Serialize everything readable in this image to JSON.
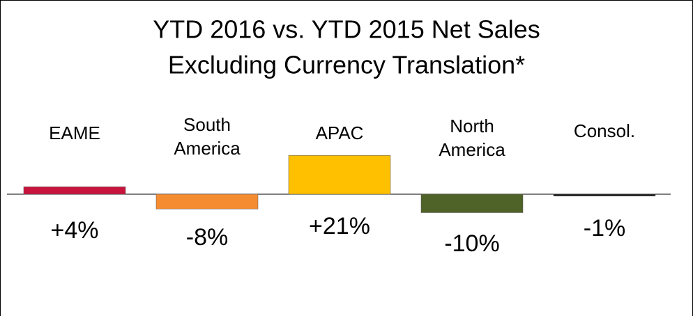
{
  "chart_data": {
    "type": "bar",
    "title": [
      "YTD 2016 vs. YTD 2015 Net Sales",
      "Excluding Currency Translation*"
    ],
    "categories": [
      "EAME",
      "South America",
      "APAC",
      "North America",
      "Consol."
    ],
    "values": [
      4,
      -8,
      21,
      -10,
      -1
    ],
    "value_labels": [
      "+4%",
      "-8%",
      "+21%",
      "-10%",
      "-1%"
    ],
    "colors": [
      "#c8143c",
      "#f58c32",
      "#ffc000",
      "#4f6228",
      "#1a1a1a"
    ]
  }
}
